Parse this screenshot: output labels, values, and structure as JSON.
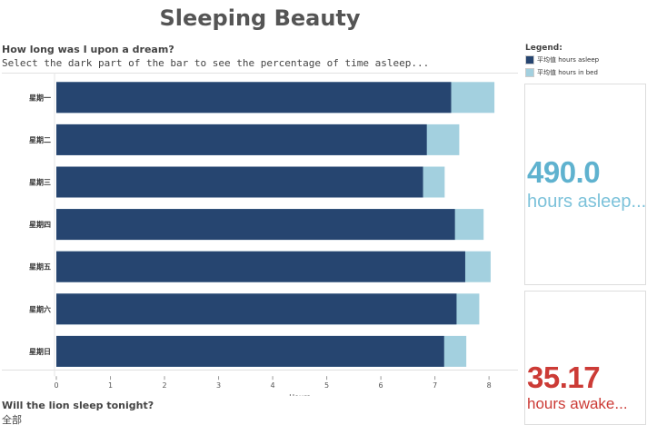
{
  "title": "Sleeping Beauty",
  "question": "How long was I upon a dream?",
  "instruction": "Select the dark part of the bar to see the percentage of time asleep...",
  "legend": {
    "title": "Legend:",
    "items": [
      {
        "label": "平均值 hours asleep",
        "color": "#264570"
      },
      {
        "label": "平均值 hours in bed",
        "color": "#a3d0df"
      }
    ]
  },
  "kpi_asleep": {
    "value": "490.0",
    "label": "hours asleep..."
  },
  "kpi_awake": {
    "value": "35.17",
    "label": "hours awake..."
  },
  "bottom": {
    "question": "Will the lion sleep tonight?",
    "filter_value": "全部"
  },
  "colors": {
    "asleep": "#264570",
    "in_bed": "#a3d0df"
  },
  "chart_data": {
    "type": "bar",
    "orientation": "horizontal",
    "stacked": false,
    "categories": [
      "星期一",
      "星期二",
      "星期三",
      "星期四",
      "星期五",
      "星期六",
      "星期日"
    ],
    "series": [
      {
        "name": "平均值 hours asleep",
        "values": [
          7.3,
          6.85,
          6.78,
          7.37,
          7.56,
          7.4,
          7.17
        ]
      },
      {
        "name": "平均值 hours in bed",
        "values": [
          8.1,
          7.45,
          7.18,
          7.9,
          8.03,
          7.82,
          7.58
        ]
      }
    ],
    "xlabel": "Hours",
    "xlim": [
      0,
      8.3
    ],
    "xticks": [
      0,
      1,
      2,
      3,
      4,
      5,
      6,
      7,
      8
    ],
    "grid": false
  }
}
